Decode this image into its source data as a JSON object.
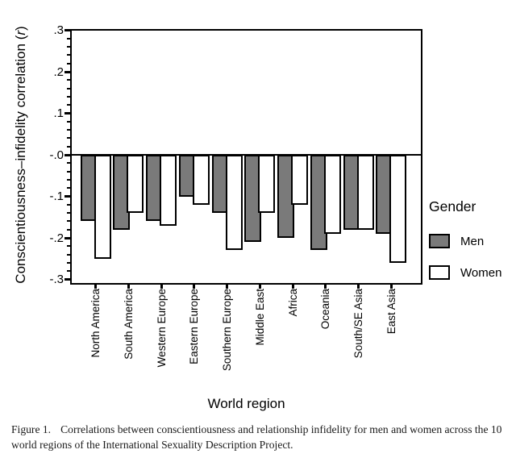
{
  "chart_data": {
    "type": "bar",
    "title": "",
    "xlabel": "World region",
    "ylabel": {
      "main": "Conscientiousness–infidelity correlation",
      "paren_open": " (",
      "symbol": "r",
      "paren_close": ")"
    },
    "ylim": [
      -0.3,
      0.3
    ],
    "grid": false,
    "y_ticks": [
      {
        "label": ".3",
        "value": 0.3
      },
      {
        "label": ".2",
        "value": 0.2
      },
      {
        "label": ".1",
        "value": 0.1
      },
      {
        "label": "-.0",
        "value": 0.0
      },
      {
        "label": "-.1",
        "value": -0.1
      },
      {
        "label": "-.2",
        "value": -0.2
      },
      {
        "label": "-.3",
        "value": -0.3
      }
    ],
    "minor_tick_step": 0.02,
    "categories": [
      "North America",
      "South America",
      "Western Europe",
      "Eastern Europe",
      "Southern Europe",
      "Middle East",
      "Africa",
      "Oceania",
      "South/SE Asia",
      "East Asia"
    ],
    "series": [
      {
        "name": "Men",
        "fill": "#7a7a7a",
        "stroke": "#000000",
        "values": [
          -0.16,
          -0.18,
          -0.16,
          -0.1,
          -0.14,
          -0.21,
          -0.2,
          -0.23,
          -0.18,
          -0.19
        ]
      },
      {
        "name": "Women",
        "fill": "#ffffff",
        "stroke": "#000000",
        "values": [
          -0.25,
          -0.14,
          -0.17,
          -0.12,
          -0.23,
          -0.14,
          -0.12,
          -0.19,
          -0.18,
          -0.26
        ]
      }
    ],
    "legend": {
      "title": "Gender",
      "position": "right",
      "entries": [
        {
          "label": "Men",
          "color": "#7a7a7a"
        },
        {
          "label": "Women",
          "color": "#ffffff"
        }
      ]
    }
  },
  "caption": {
    "label": "Figure 1.",
    "line1": "Correlations between conscientiousness and relationship infidelity for men and women across the 10",
    "line2": "world regions of the International Sexuality Description Project."
  }
}
